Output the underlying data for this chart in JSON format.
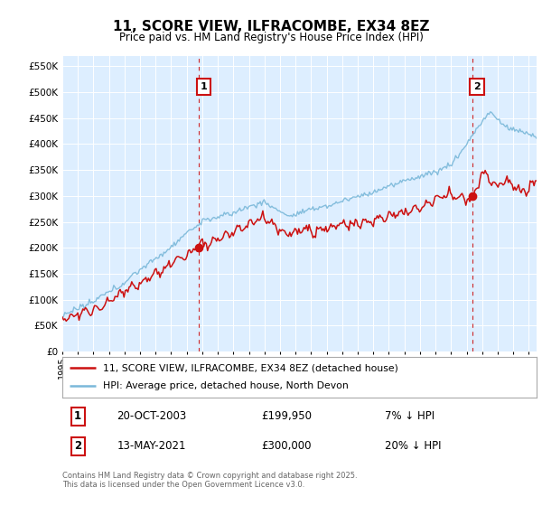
{
  "title": "11, SCORE VIEW, ILFRACOMBE, EX34 8EZ",
  "subtitle": "Price paid vs. HM Land Registry's House Price Index (HPI)",
  "ylim": [
    0,
    570000
  ],
  "ytick_vals": [
    0,
    50000,
    100000,
    150000,
    200000,
    250000,
    300000,
    350000,
    400000,
    450000,
    500000,
    550000
  ],
  "legend_line1": "11, SCORE VIEW, ILFRACOMBE, EX34 8EZ (detached house)",
  "legend_line2": "HPI: Average price, detached house, North Devon",
  "sale1_date": "20-OCT-2003",
  "sale1_price": "£199,950",
  "sale1_hpi": "7% ↓ HPI",
  "sale2_date": "13-MAY-2021",
  "sale2_price": "£300,000",
  "sale2_hpi": "20% ↓ HPI",
  "copyright_text": "Contains HM Land Registry data © Crown copyright and database right 2025.\nThis data is licensed under the Open Government Licence v3.0.",
  "hpi_color": "#7ab8d9",
  "price_color": "#cc1111",
  "marker1_x": 2003.8,
  "marker2_x": 2021.37,
  "chart_bg": "#ddeeff",
  "background_color": "#ffffff",
  "grid_color": "#ffffff"
}
